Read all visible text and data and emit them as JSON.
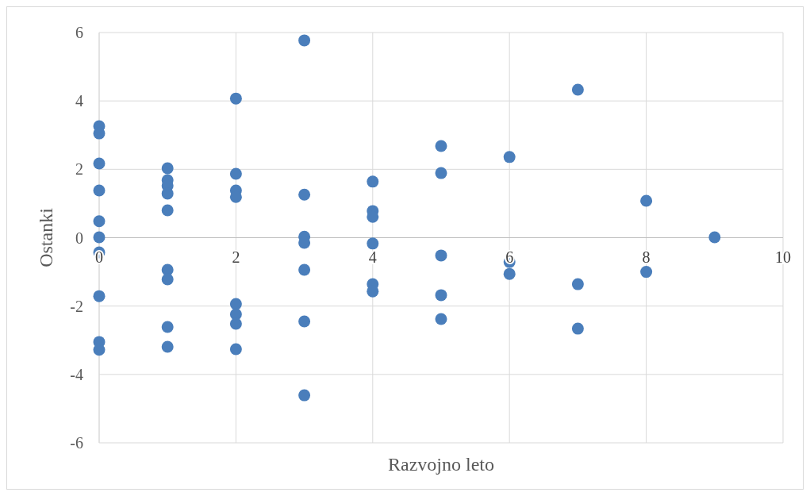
{
  "chart_data": {
    "type": "scatter",
    "xlabel": "Razvojno leto",
    "ylabel": "Ostanki",
    "xlim": [
      0,
      10
    ],
    "ylim": [
      -6,
      6
    ],
    "xticks": [
      0,
      2,
      4,
      6,
      8,
      10
    ],
    "yticks": [
      -6,
      -4,
      -2,
      0,
      2,
      4,
      6
    ],
    "grid": true,
    "marker": "circle",
    "series": [
      {
        "color": "#4a7ebb",
        "x": [
          0,
          0,
          0,
          0,
          0,
          0,
          0,
          0,
          0,
          0,
          1,
          1,
          1,
          1,
          1,
          1,
          1,
          1,
          1,
          2,
          2,
          2,
          2,
          2,
          2,
          2,
          2,
          3,
          3,
          3,
          3,
          3,
          3,
          3,
          4,
          4,
          4,
          4,
          4,
          4,
          5,
          5,
          5,
          5,
          5,
          6,
          6,
          6,
          7,
          7,
          7,
          8,
          8,
          9
        ],
        "values": [
          3.26,
          3.05,
          2.17,
          1.38,
          0.48,
          0.01,
          -0.43,
          -1.71,
          -3.05,
          -3.28,
          2.03,
          1.68,
          1.52,
          1.29,
          0.8,
          -0.94,
          -1.22,
          -2.61,
          -3.19,
          4.07,
          1.87,
          1.38,
          1.19,
          -1.94,
          -2.24,
          -2.52,
          -3.26,
          5.77,
          1.26,
          0.03,
          -0.15,
          -0.94,
          -2.45,
          -4.61,
          1.64,
          0.78,
          0.61,
          -0.17,
          -1.36,
          -1.57,
          2.68,
          1.89,
          -0.52,
          -1.68,
          -2.38,
          2.36,
          -0.71,
          -1.06,
          4.33,
          -1.36,
          -2.66,
          1.08,
          -1.0,
          0.01
        ]
      }
    ]
  }
}
